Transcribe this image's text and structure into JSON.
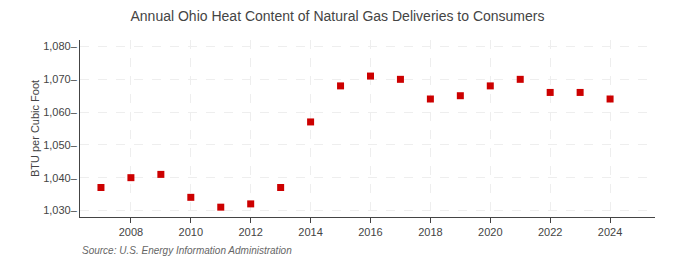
{
  "chart_data": {
    "type": "scatter",
    "title": "Annual Ohio Heat Content of Natural Gas Deliveries to Consumers",
    "ylabel": "BTU per Cubic Foot",
    "annotations": [
      {
        "text": "Source: U.S. Energy Information Administration"
      }
    ],
    "x": [
      2007,
      2008,
      2009,
      2010,
      2011,
      2012,
      2013,
      2014,
      2015,
      2016,
      2017,
      2018,
      2019,
      2020,
      2021,
      2022,
      2023,
      2024
    ],
    "values": [
      1037,
      1040,
      1041,
      1034,
      1031,
      1032,
      1037,
      1057,
      1068,
      1071,
      1070,
      1064,
      1065,
      1068,
      1070,
      1066,
      1066,
      1064
    ],
    "color": "#cc0000",
    "marker": "square",
    "xlim": [
      2006.3,
      2025.5
    ],
    "ylim": [
      1028,
      1082
    ],
    "xticks": [
      2008,
      2010,
      2012,
      2014,
      2016,
      2018,
      2020,
      2022,
      2024
    ],
    "yticks": [
      {
        "value": 1030,
        "label": "1,030–"
      },
      {
        "value": 1040,
        "label": "1,040–"
      },
      {
        "value": 1050,
        "label": "1,050–"
      },
      {
        "value": 1060,
        "label": "1,060–"
      },
      {
        "value": 1070,
        "label": "1,070–"
      },
      {
        "value": 1080,
        "label": "1,080–"
      }
    ],
    "grid": true
  }
}
